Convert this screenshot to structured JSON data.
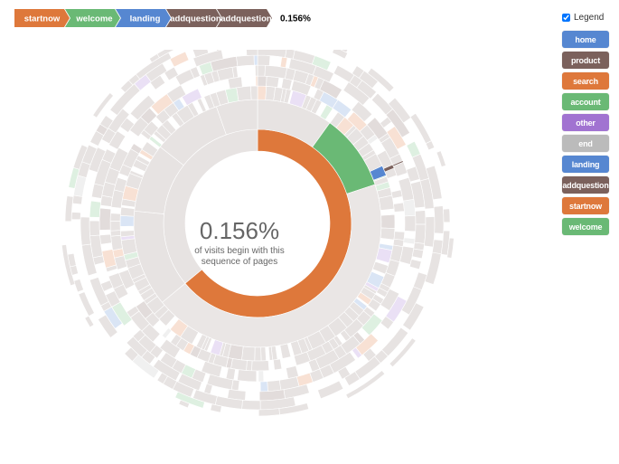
{
  "chart_data": {
    "type": "sunburst",
    "breadcrumb": {
      "steps": [
        "startnow",
        "welcome",
        "landing",
        "addquestion",
        "addquestion"
      ],
      "value": "0.156%"
    },
    "center": {
      "percentage": "0.156%",
      "caption": "of visits begin with this\nsequence of pages"
    },
    "legend": {
      "toggle_label": "Legend",
      "items": [
        {
          "name": "home",
          "color": "#5687d1"
        },
        {
          "name": "product",
          "color": "#7b615c"
        },
        {
          "name": "search",
          "color": "#de783b"
        },
        {
          "name": "account",
          "color": "#6ab975"
        },
        {
          "name": "other",
          "color": "#a173d1"
        },
        {
          "name": "end",
          "color": "#bbbbbb"
        },
        {
          "name": "landing",
          "color": "#5687d1"
        },
        {
          "name": "addquestion",
          "color": "#7b615c"
        },
        {
          "name": "startnow",
          "color": "#de783b"
        },
        {
          "name": "welcome",
          "color": "#6ab975"
        }
      ]
    },
    "highlighted_path": [
      {
        "name": "startnow",
        "share": 0.64
      },
      {
        "name": "welcome",
        "share": 0.1
      },
      {
        "name": "landing",
        "share": 0.012
      },
      {
        "name": "addquestion",
        "share": 0.004
      },
      {
        "name": "addquestion",
        "share": 0.0016
      }
    ]
  }
}
